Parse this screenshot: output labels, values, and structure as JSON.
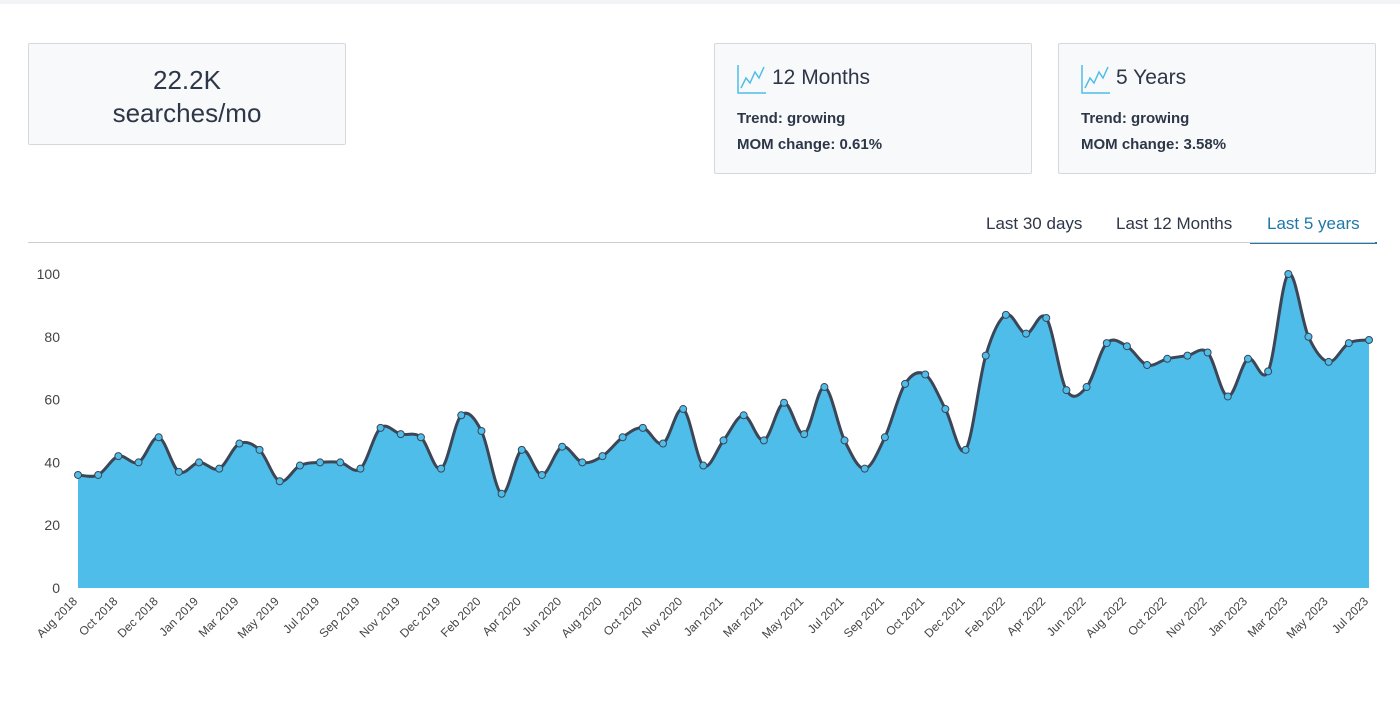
{
  "summary": {
    "value": "22.2K",
    "unit": "searches/mo"
  },
  "cards": [
    {
      "title": "12 Months",
      "trend": "Trend: growing",
      "mom": "MOM change: 0.61%"
    },
    {
      "title": "5 Years",
      "trend": "Trend: growing",
      "mom": "MOM change: 3.58%"
    }
  ],
  "tabs": {
    "items": [
      "Last 30 days",
      "Last 12 Months",
      "Last 5 years"
    ],
    "active": 2
  },
  "chart_data": {
    "type": "area",
    "categories": [
      "Aug 2018",
      null,
      "Oct 2018",
      null,
      "Dec 2018",
      null,
      "Jan 2019",
      null,
      "Mar 2019",
      null,
      "May 2019",
      null,
      "Jul 2019",
      null,
      "Sep 2019",
      null,
      "Nov 2019",
      null,
      "Dec 2019",
      null,
      "Feb 2020",
      null,
      "Apr 2020",
      null,
      "Jun 2020",
      null,
      "Aug 2020",
      null,
      "Oct 2020",
      null,
      "Nov 2020",
      null,
      "Jan 2021",
      null,
      "Mar 2021",
      null,
      "May 2021",
      null,
      "Jul 2021",
      null,
      "Sep 2021",
      null,
      "Oct 2021",
      null,
      "Dec 2021",
      null,
      "Feb 2022",
      null,
      "Apr 2022",
      null,
      "Jun 2022",
      null,
      "Aug 2022",
      null,
      "Oct 2022",
      null,
      "Nov 2022",
      null,
      "Jan 2023",
      null,
      "Mar 2023",
      null,
      "May 2023",
      null,
      "Jul 2023"
    ],
    "series": [
      {
        "color": "#4fbde9",
        "line_color": "#3b4656",
        "values": [
          36,
          36,
          42,
          40,
          48,
          37,
          40,
          38,
          46,
          44,
          34,
          39,
          40,
          40,
          38,
          51,
          49,
          48,
          38,
          55,
          50,
          30,
          44,
          36,
          45,
          40,
          42,
          48,
          51,
          46,
          57,
          39,
          47,
          55,
          47,
          59,
          49,
          64,
          47,
          38,
          48,
          65,
          68,
          57,
          44,
          74,
          87,
          81,
          86,
          63,
          64,
          78,
          77,
          71,
          73,
          74,
          75,
          61,
          73,
          69,
          100,
          80,
          72,
          78,
          79
        ]
      }
    ],
    "ylim": [
      0,
      100
    ],
    "yticks": [
      0,
      20,
      40,
      60,
      80,
      100
    ],
    "grid": false
  }
}
